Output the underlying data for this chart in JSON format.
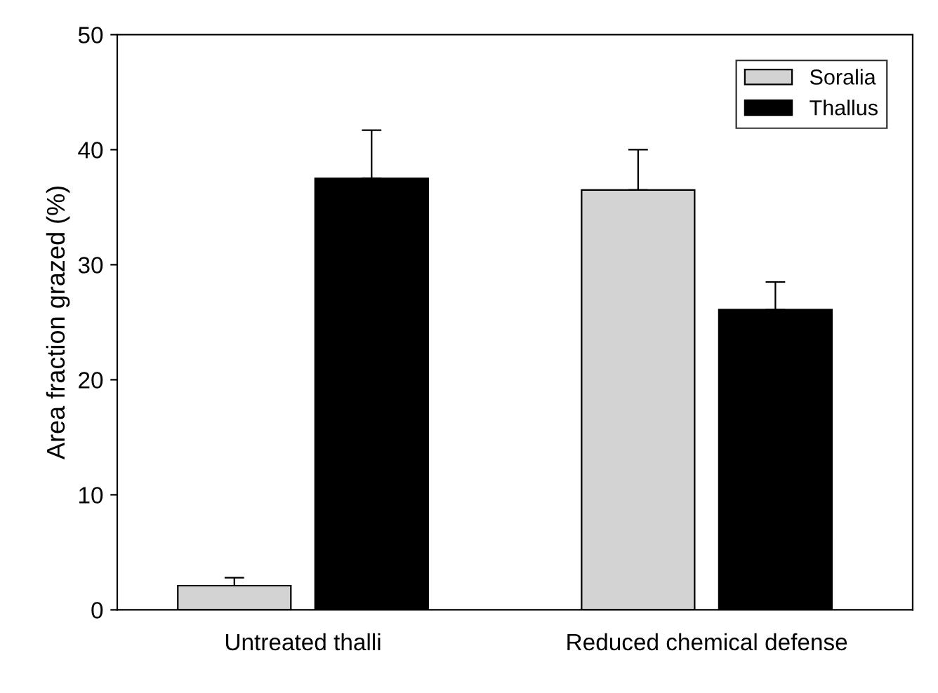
{
  "chart_data": {
    "type": "bar",
    "ylabel": "Area fraction grazed (%)",
    "categories": [
      "Untreated thalli",
      "Reduced chemical defense"
    ],
    "series": [
      {
        "name": "Soralia",
        "color": "#d3d3d3",
        "values": [
          2.1,
          36.5
        ],
        "errors": [
          [
            2.1,
            2.8
          ],
          [
            36.5,
            40.0
          ]
        ]
      },
      {
        "name": "Thallus",
        "color": "#000000",
        "values": [
          37.5,
          26.1
        ],
        "errors": [
          [
            37.5,
            41.7
          ],
          [
            26.1,
            28.5
          ]
        ]
      }
    ],
    "ylim": [
      0,
      50
    ],
    "yticks": [
      0,
      10,
      20,
      30,
      40,
      50
    ],
    "grid": false,
    "legend": "top right"
  }
}
